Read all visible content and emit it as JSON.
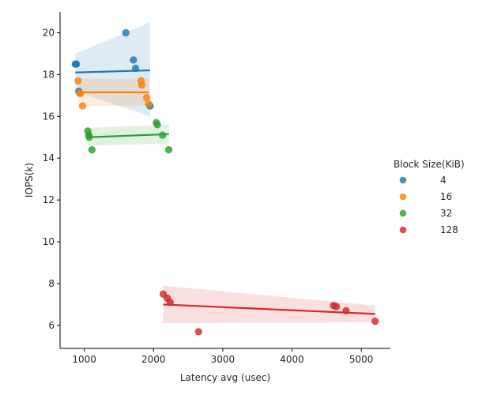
{
  "chart_data": {
    "type": "scatter",
    "title": "",
    "xlabel": "Latency avg (usec)",
    "ylabel": "IOPS(k)",
    "xlim": [
      650,
      5420
    ],
    "ylim": [
      4.9,
      21.0
    ],
    "xticks": [
      1000,
      2000,
      3000,
      4000,
      5000
    ],
    "yticks": [
      6,
      8,
      10,
      12,
      14,
      16,
      18,
      20
    ],
    "grid": false,
    "legend": {
      "title": "Block Size(KiB)",
      "placement": "right"
    },
    "regression_lines": true,
    "confidence_bands": true,
    "series": [
      {
        "name": "4",
        "color": "#1f77b4",
        "points": [
          {
            "x": 870,
            "y": 18.5
          },
          {
            "x": 885,
            "y": 18.5
          },
          {
            "x": 920,
            "y": 17.2
          },
          {
            "x": 1600,
            "y": 20.0
          },
          {
            "x": 1710,
            "y": 18.7
          },
          {
            "x": 1740,
            "y": 18.3
          },
          {
            "x": 1950,
            "y": 16.5
          }
        ],
        "fit": {
          "x": [
            870,
            1950
          ],
          "y": [
            18.1,
            18.2
          ]
        },
        "band": {
          "x": [
            870,
            1950
          ],
          "upper": [
            19.0,
            20.5
          ],
          "lower": [
            17.2,
            16.0
          ]
        }
      },
      {
        "name": "16",
        "color": "#ff7f0e",
        "points": [
          {
            "x": 910,
            "y": 17.7
          },
          {
            "x": 935,
            "y": 17.1
          },
          {
            "x": 945,
            "y": 17.1
          },
          {
            "x": 975,
            "y": 16.5
          },
          {
            "x": 1820,
            "y": 17.7
          },
          {
            "x": 1830,
            "y": 17.5
          },
          {
            "x": 1900,
            "y": 16.9
          },
          {
            "x": 1930,
            "y": 16.6
          }
        ],
        "fit": {
          "x": [
            910,
            1930
          ],
          "y": [
            17.15,
            17.15
          ]
        },
        "band": {
          "x": [
            910,
            1930
          ],
          "upper": [
            17.8,
            17.8
          ],
          "lower": [
            16.5,
            16.5
          ]
        }
      },
      {
        "name": "32",
        "color": "#2ca02c",
        "points": [
          {
            "x": 1050,
            "y": 15.3
          },
          {
            "x": 1065,
            "y": 15.1
          },
          {
            "x": 1070,
            "y": 15.0
          },
          {
            "x": 1110,
            "y": 14.4
          },
          {
            "x": 2040,
            "y": 15.7
          },
          {
            "x": 2055,
            "y": 15.6
          },
          {
            "x": 2130,
            "y": 15.1
          },
          {
            "x": 2220,
            "y": 14.4
          }
        ],
        "fit": {
          "x": [
            1050,
            2220
          ],
          "y": [
            15.0,
            15.15
          ]
        },
        "band": {
          "x": [
            1050,
            2220
          ],
          "upper": [
            15.45,
            15.6
          ],
          "lower": [
            14.6,
            14.7
          ]
        }
      },
      {
        "name": "128",
        "color": "#d62728",
        "points": [
          {
            "x": 2140,
            "y": 7.5
          },
          {
            "x": 2200,
            "y": 7.3
          },
          {
            "x": 2240,
            "y": 7.1
          },
          {
            "x": 2650,
            "y": 5.7
          },
          {
            "x": 4600,
            "y": 6.95
          },
          {
            "x": 4640,
            "y": 6.9
          },
          {
            "x": 4780,
            "y": 6.7
          },
          {
            "x": 5200,
            "y": 6.2
          }
        ],
        "fit": {
          "x": [
            2140,
            5200
          ],
          "y": [
            7.0,
            6.55
          ]
        },
        "band": {
          "x": [
            2140,
            5200
          ],
          "upper": [
            7.9,
            6.95
          ],
          "lower": [
            6.1,
            6.15
          ]
        }
      }
    ]
  }
}
